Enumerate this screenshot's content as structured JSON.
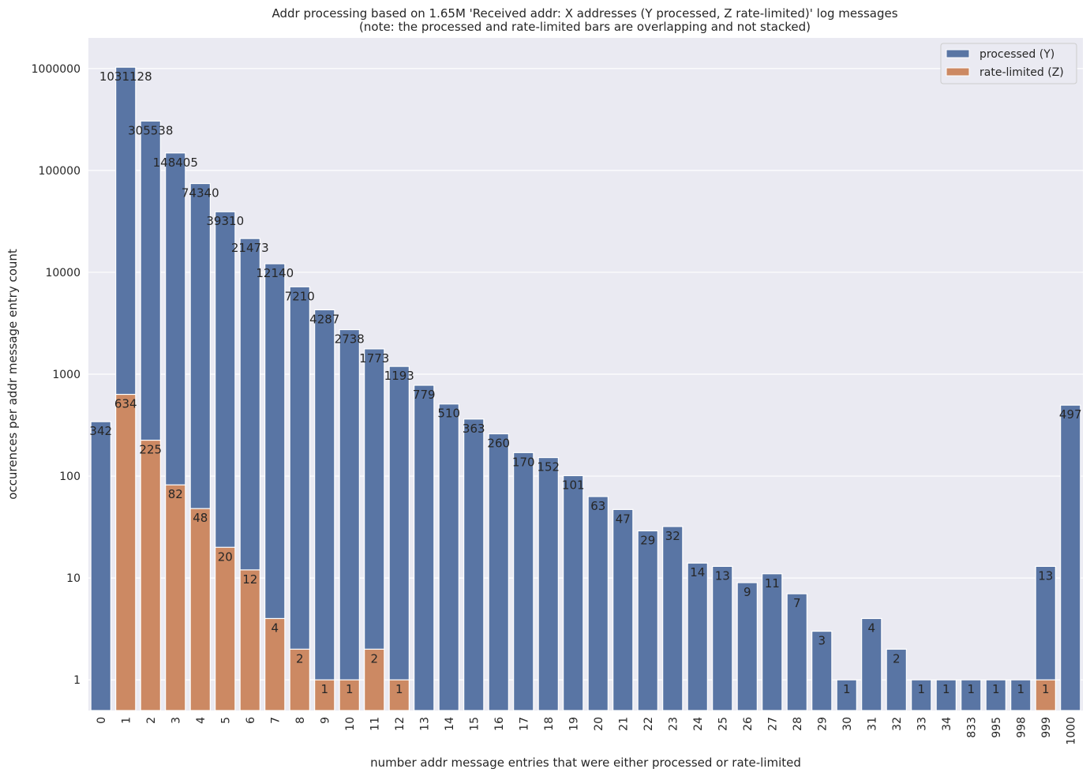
{
  "chart_data": {
    "type": "bar",
    "title": "Addr processing based on 1.65M 'Received addr: X addresses (Y processed, Z rate-limited)' log messages",
    "subtitle": "(note: the processed and rate-limited bars are overlapping and not stacked)",
    "xlabel": "number addr message entries that were either processed or rate-limited",
    "ylabel": "occurences per addr message entry count",
    "yscale": "log",
    "ylim": [
      0.5,
      2000000
    ],
    "yticks": [
      1,
      10,
      100,
      1000,
      10000,
      100000,
      1000000
    ],
    "ytick_labels": [
      "1",
      "10",
      "100",
      "1000",
      "10000",
      "100000",
      "1000000"
    ],
    "grid": true,
    "legend_position": "top-right",
    "categories": [
      "0",
      "1",
      "2",
      "3",
      "4",
      "5",
      "6",
      "7",
      "8",
      "9",
      "10",
      "11",
      "12",
      "13",
      "14",
      "15",
      "16",
      "17",
      "18",
      "19",
      "20",
      "21",
      "22",
      "23",
      "24",
      "25",
      "26",
      "27",
      "28",
      "29",
      "30",
      "31",
      "32",
      "33",
      "34",
      "833",
      "995",
      "998",
      "999",
      "1000"
    ],
    "series": [
      {
        "name": "processed (Y)",
        "color": "#5975a4",
        "values": [
          342,
          1031128,
          305538,
          148405,
          74340,
          39310,
          21473,
          12140,
          7210,
          4287,
          2738,
          1773,
          1193,
          779,
          510,
          363,
          260,
          170,
          152,
          101,
          63,
          47,
          29,
          32,
          14,
          13,
          9,
          11,
          7,
          3,
          1,
          4,
          2,
          1,
          1,
          1,
          1,
          1,
          13,
          497
        ]
      },
      {
        "name": "rate-limited (Z)",
        "color": "#cc8963",
        "values": [
          null,
          634,
          225,
          82,
          48,
          20,
          12,
          4,
          2,
          1,
          1,
          2,
          1,
          null,
          null,
          null,
          null,
          null,
          null,
          null,
          null,
          null,
          null,
          null,
          null,
          null,
          null,
          null,
          null,
          null,
          null,
          null,
          null,
          null,
          null,
          null,
          null,
          null,
          1,
          null
        ]
      }
    ],
    "background_color": "#eaeaf2"
  }
}
